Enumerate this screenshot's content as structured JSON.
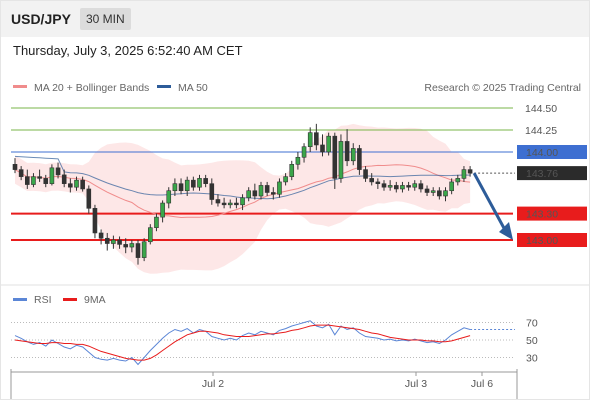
{
  "header": {
    "symbol": "USD/JPY",
    "timeframe": "30 MIN"
  },
  "datetime": "Thursday, July 3, 2025 6:52:40 AM CET",
  "chart_data": {
    "type": "candlestick",
    "legend": [
      {
        "name": "MA 20 + Bollinger Bands",
        "color": "#f08c8c"
      },
      {
        "name": "MA 50",
        "color": "#2d5c99"
      }
    ],
    "credit": "Research © 2025 Trading Central",
    "x_ticks": [
      "Jul 2",
      "Jul 3",
      "Jul 6"
    ],
    "y_ticks": [
      {
        "value": 144.5,
        "label": "144.50",
        "kind": "target",
        "color": "#7ab648"
      },
      {
        "value": 144.25,
        "label": "144.25",
        "kind": "target",
        "color": "#7ab648"
      },
      {
        "value": 144.0,
        "label": "144.00",
        "kind": "pivot",
        "color": "#3e6fd1"
      },
      {
        "value": 143.76,
        "label": "143.76",
        "kind": "last",
        "color": "#2b2b2b"
      },
      {
        "value": 143.3,
        "label": "143.30",
        "kind": "support",
        "color": "#e81c1c"
      },
      {
        "value": 143.0,
        "label": "143.00",
        "kind": "support",
        "color": "#e81c1c"
      }
    ],
    "ylim": [
      142.6,
      144.65
    ],
    "candles": [
      [
        143.86,
        143.93,
        143.76,
        143.8
      ],
      [
        143.8,
        143.84,
        143.68,
        143.72
      ],
      [
        143.72,
        143.8,
        143.58,
        143.63
      ],
      [
        143.63,
        143.76,
        143.6,
        143.72
      ],
      [
        143.72,
        143.8,
        143.66,
        143.7
      ],
      [
        143.7,
        143.74,
        143.6,
        143.64
      ],
      [
        143.64,
        143.86,
        143.62,
        143.82
      ],
      [
        143.82,
        143.88,
        143.7,
        143.74
      ],
      [
        143.74,
        143.8,
        143.6,
        143.64
      ],
      [
        143.64,
        143.7,
        143.54,
        143.6
      ],
      [
        143.6,
        143.72,
        143.56,
        143.68
      ],
      [
        143.68,
        143.72,
        143.55,
        143.58
      ],
      [
        143.58,
        143.62,
        143.3,
        143.36
      ],
      [
        143.36,
        143.4,
        143.02,
        143.08
      ],
      [
        143.08,
        143.12,
        142.95,
        143.02
      ],
      [
        143.02,
        143.08,
        142.88,
        142.96
      ],
      [
        142.96,
        143.05,
        142.9,
        143.0
      ],
      [
        143.0,
        143.04,
        142.9,
        142.95
      ],
      [
        142.95,
        143.02,
        142.85,
        142.92
      ],
      [
        142.92,
        143.0,
        142.86,
        142.96
      ],
      [
        142.96,
        143.0,
        142.72,
        142.8
      ],
      [
        142.8,
        143.02,
        142.76,
        142.98
      ],
      [
        142.98,
        143.18,
        142.95,
        143.14
      ],
      [
        143.14,
        143.3,
        143.1,
        143.26
      ],
      [
        143.26,
        143.45,
        143.2,
        143.42
      ],
      [
        143.42,
        143.6,
        143.36,
        143.56
      ],
      [
        143.56,
        143.7,
        143.5,
        143.64
      ],
      [
        143.64,
        143.7,
        143.52,
        143.56
      ],
      [
        143.56,
        143.72,
        143.5,
        143.68
      ],
      [
        143.68,
        143.72,
        143.56,
        143.6
      ],
      [
        143.6,
        143.74,
        143.56,
        143.7
      ],
      [
        143.7,
        143.74,
        143.6,
        143.64
      ],
      [
        143.64,
        143.7,
        143.4,
        143.46
      ],
      [
        143.46,
        143.52,
        143.38,
        143.42
      ],
      [
        143.42,
        143.48,
        143.36,
        143.4
      ],
      [
        143.4,
        143.46,
        143.36,
        143.42
      ],
      [
        143.42,
        143.48,
        143.36,
        143.4
      ],
      [
        143.4,
        143.52,
        143.34,
        143.48
      ],
      [
        143.48,
        143.6,
        143.44,
        143.56
      ],
      [
        143.56,
        143.64,
        143.46,
        143.5
      ],
      [
        143.5,
        143.66,
        143.46,
        143.62
      ],
      [
        143.62,
        143.66,
        143.5,
        143.54
      ],
      [
        143.54,
        143.6,
        143.46,
        143.52
      ],
      [
        143.52,
        143.7,
        143.48,
        143.66
      ],
      [
        143.66,
        143.76,
        143.62,
        143.72
      ],
      [
        143.72,
        143.9,
        143.68,
        143.86
      ],
      [
        143.86,
        144.0,
        143.8,
        143.94
      ],
      [
        143.94,
        144.1,
        143.88,
        144.06
      ],
      [
        144.06,
        144.28,
        144.0,
        144.22
      ],
      [
        144.22,
        144.32,
        144.02,
        144.08
      ],
      [
        144.08,
        144.2,
        143.95,
        144.0
      ],
      [
        144.0,
        144.22,
        143.96,
        144.18
      ],
      [
        144.18,
        144.22,
        143.58,
        143.7
      ],
      [
        143.7,
        144.2,
        143.65,
        144.12
      ],
      [
        144.12,
        144.26,
        143.84,
        143.9
      ],
      [
        143.9,
        144.1,
        143.85,
        144.04
      ],
      [
        144.04,
        144.08,
        143.74,
        143.8
      ],
      [
        143.8,
        143.84,
        143.66,
        143.7
      ],
      [
        143.7,
        143.76,
        143.62,
        143.66
      ],
      [
        143.66,
        143.7,
        143.58,
        143.64
      ],
      [
        143.64,
        143.68,
        143.56,
        143.6
      ],
      [
        143.6,
        143.68,
        143.56,
        143.62
      ],
      [
        143.62,
        143.66,
        143.54,
        143.58
      ],
      [
        143.58,
        143.66,
        143.54,
        143.62
      ],
      [
        143.62,
        143.66,
        143.56,
        143.6
      ],
      [
        143.6,
        143.68,
        143.56,
        143.64
      ],
      [
        143.64,
        143.68,
        143.54,
        143.58
      ],
      [
        143.58,
        143.62,
        143.5,
        143.54
      ],
      [
        143.54,
        143.6,
        143.5,
        143.56
      ],
      [
        143.56,
        143.6,
        143.46,
        143.5
      ],
      [
        143.5,
        143.6,
        143.44,
        143.56
      ],
      [
        143.56,
        143.7,
        143.52,
        143.66
      ],
      [
        143.66,
        143.74,
        143.62,
        143.7
      ],
      [
        143.7,
        143.84,
        143.66,
        143.8
      ],
      [
        143.8,
        143.84,
        143.72,
        143.76
      ]
    ],
    "projection": {
      "from_value": 143.76,
      "to_value": 143.0
    },
    "rsi": {
      "legend": [
        {
          "name": "RSI",
          "color": "#5b86d6"
        },
        {
          "name": "9MA",
          "color": "#e81c1c"
        }
      ],
      "y_ticks": [
        70,
        50,
        30
      ],
      "ylim": [
        20,
        80
      ],
      "values": [
        55,
        52,
        48,
        45,
        47,
        43,
        50,
        46,
        42,
        40,
        44,
        42,
        36,
        30,
        28,
        27,
        29,
        27,
        26,
        30,
        22,
        30,
        38,
        45,
        52,
        58,
        62,
        60,
        63,
        58,
        62,
        60,
        54,
        52,
        50,
        52,
        50,
        55,
        58,
        56,
        60,
        58,
        56,
        61,
        63,
        66,
        68,
        70,
        72,
        66,
        64,
        68,
        56,
        66,
        62,
        64,
        58,
        54,
        53,
        52,
        50,
        51,
        49,
        50,
        49,
        51,
        49,
        47,
        48,
        46,
        50,
        56,
        60,
        64,
        62
      ],
      "ma_values": [
        50,
        49,
        48,
        47,
        46,
        46,
        47,
        47,
        46,
        46,
        45,
        45,
        43,
        40,
        37,
        35,
        33,
        31,
        29,
        28,
        27,
        27,
        29,
        33,
        38,
        43,
        48,
        52,
        56,
        58,
        60,
        60,
        59,
        58,
        56,
        55,
        54,
        54,
        54,
        55,
        56,
        57,
        57,
        58,
        59,
        61,
        62,
        64,
        66,
        67,
        67,
        67,
        66,
        65,
        64,
        63,
        62,
        60,
        58,
        57,
        55,
        53,
        52,
        51,
        50,
        50,
        50,
        49,
        49,
        48,
        48,
        49,
        51,
        53,
        55
      ]
    }
  }
}
